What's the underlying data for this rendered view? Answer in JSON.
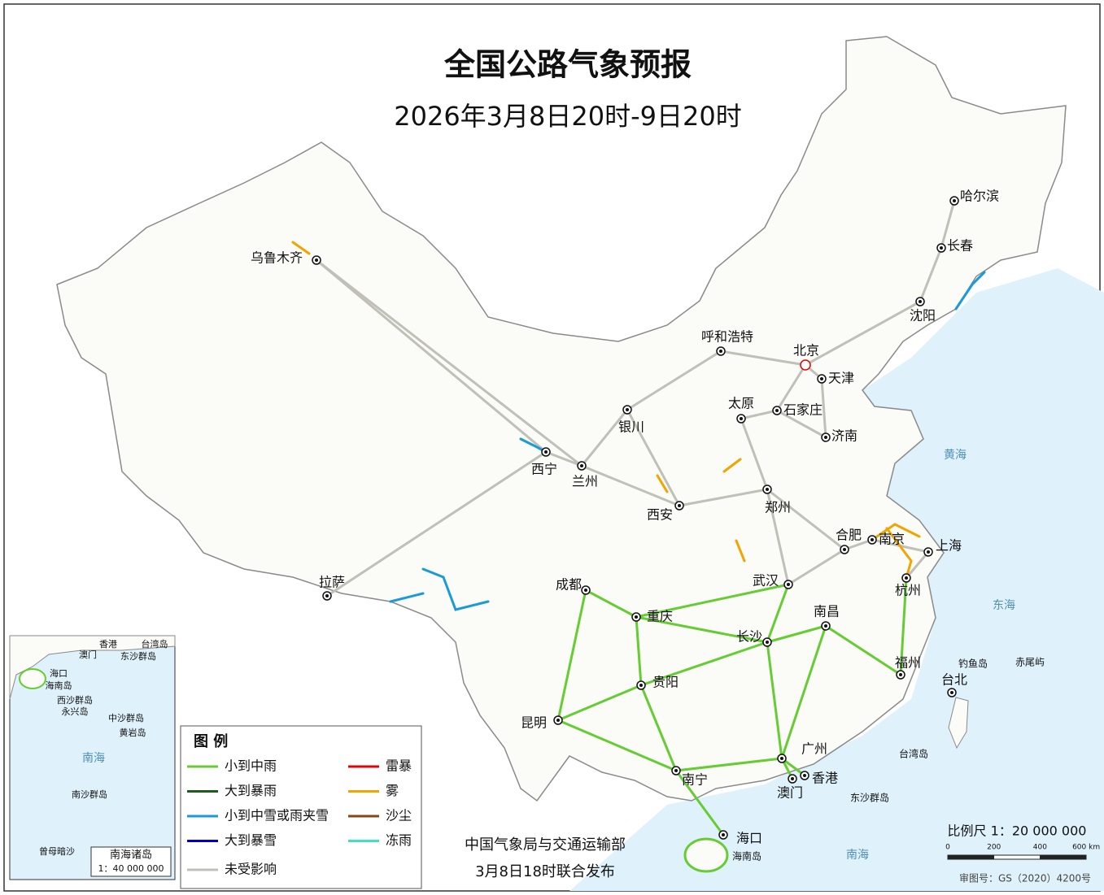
{
  "header": {
    "title": "全国公路气象预报",
    "subtitle": "2026年3月8日20时-9日20时"
  },
  "cities": [
    {
      "label": "乌鲁木齐"
    },
    {
      "label": "拉萨"
    },
    {
      "label": "西宁"
    },
    {
      "label": "兰州"
    },
    {
      "label": "银川"
    },
    {
      "label": "呼和浩特"
    },
    {
      "label": "北京"
    },
    {
      "label": "天津"
    },
    {
      "label": "石家庄"
    },
    {
      "label": "太原"
    },
    {
      "label": "济南"
    },
    {
      "label": "郑州"
    },
    {
      "label": "西安"
    },
    {
      "label": "合肥"
    },
    {
      "label": "南京"
    },
    {
      "label": "上海"
    },
    {
      "label": "杭州"
    },
    {
      "label": "武汉"
    },
    {
      "label": "成都"
    },
    {
      "label": "重庆"
    },
    {
      "label": "长沙"
    },
    {
      "label": "南昌"
    },
    {
      "label": "福州"
    },
    {
      "label": "台北"
    },
    {
      "label": "贵阳"
    },
    {
      "label": "昆明"
    },
    {
      "label": "南宁"
    },
    {
      "label": "广州"
    },
    {
      "label": "香港"
    },
    {
      "label": "澳门"
    },
    {
      "label": "海口"
    },
    {
      "label": "哈尔滨"
    },
    {
      "label": "长春"
    },
    {
      "label": "沈阳"
    }
  ],
  "places": [
    "黄海",
    "东海",
    "南海",
    "台湾岛",
    "钓鱼岛",
    "赤尾屿",
    "东沙群岛",
    "海南岛"
  ],
  "legend": {
    "title": "图 例",
    "items": [
      {
        "label": "小到中雨",
        "color": "#66cc33"
      },
      {
        "label": "雷暴",
        "color": "#e60000"
      },
      {
        "label": "大到暴雨",
        "color": "#1e5b1e"
      },
      {
        "label": "雾",
        "color": "#f0a500"
      },
      {
        "label": "小到中雪或雨夹雪",
        "color": "#1a9ad6"
      },
      {
        "label": "沙尘",
        "color": "#8b4513"
      },
      {
        "label": "大到暴雪",
        "color": "#0000cc"
      },
      {
        "label": "冻雨",
        "color": "#40e0c0"
      },
      {
        "label": "未受影响",
        "color": "#c0c0b8"
      }
    ]
  },
  "footer": {
    "publisher": "中国气象局与交通运输部",
    "release": "3月8日18时联合发布"
  },
  "scale": {
    "label": "比例尺 1：20 000 000",
    "ticks": [
      "0",
      "200",
      "400",
      "600 km"
    ]
  },
  "review": "审图号：GS（2020）4200号",
  "inset": {
    "labels": [
      "香港",
      "台湾岛",
      "澳门",
      "东沙群岛",
      "海口",
      "海南岛",
      "西沙群岛",
      "永兴岛",
      "中沙群岛",
      "黄岩岛",
      "南海",
      "南沙群岛",
      "曾母暗沙"
    ],
    "title": "南海诸岛",
    "scale": "1：40 000 000"
  }
}
